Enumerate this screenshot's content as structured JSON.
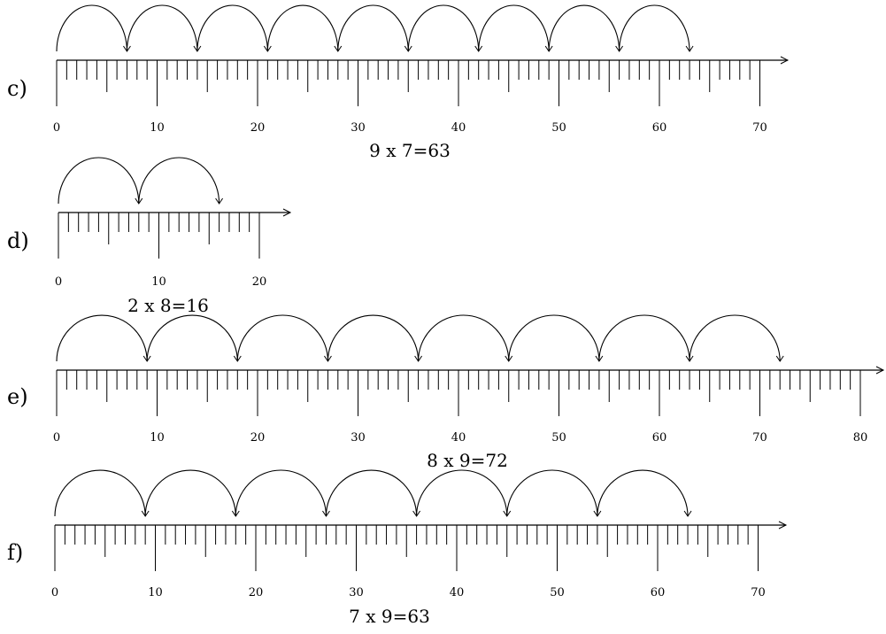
{
  "number_lines": [
    {
      "id": "c",
      "label": "c)",
      "max_value": 70,
      "tick_labels": [
        "0",
        "10",
        "20",
        "30",
        "40",
        "50",
        "60",
        "70"
      ],
      "jump_size": 7,
      "jump_count": 9,
      "equation": "9 x 7=63"
    },
    {
      "id": "d",
      "label": "d)",
      "max_value": 20,
      "tick_labels": [
        "0",
        "10",
        "20"
      ],
      "jump_size": 8,
      "jump_count": 2,
      "equation": "2 x 8=16"
    },
    {
      "id": "e",
      "label": "e)",
      "max_value": 80,
      "tick_labels": [
        "0",
        "10",
        "20",
        "30",
        "40",
        "50",
        "60",
        "70",
        "80"
      ],
      "jump_size": 9,
      "jump_count": 8,
      "equation": "8 x 9=72"
    },
    {
      "id": "f",
      "label": "f)",
      "max_value": 70,
      "tick_labels": [
        "0",
        "10",
        "20",
        "30",
        "40",
        "50",
        "60",
        "70"
      ],
      "jump_size": 9,
      "jump_count": 7,
      "equation": "7 x 9=63"
    }
  ]
}
